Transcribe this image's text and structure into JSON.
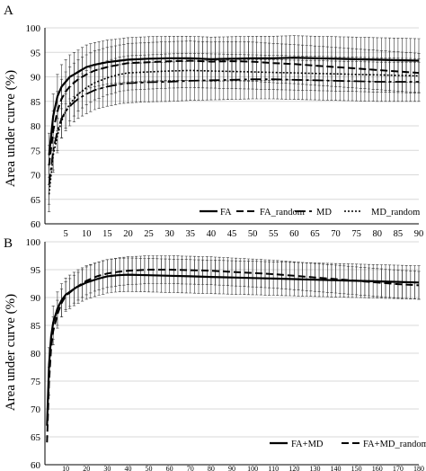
{
  "chart_data": [
    {
      "type": "line",
      "panel_label": "A",
      "ylabel": "Area under curve (%)",
      "ylim": [
        60,
        100
      ],
      "yticks": [
        60,
        65,
        70,
        75,
        80,
        85,
        90,
        95,
        100
      ],
      "xlim": [
        0,
        90
      ],
      "xticks": [
        5,
        10,
        15,
        20,
        25,
        30,
        35,
        40,
        45,
        50,
        55,
        60,
        65,
        70,
        75,
        80,
        85,
        90
      ],
      "grid": true,
      "legend_position": "bottom-right",
      "error_bars": true,
      "x": [
        1,
        2,
        3,
        4,
        5,
        6,
        7,
        8,
        10,
        12,
        15,
        18,
        20,
        25,
        30,
        35,
        40,
        45,
        50,
        55,
        60,
        65,
        70,
        75,
        80,
        85,
        90
      ],
      "series": [
        {
          "name": "FA",
          "values": [
            74,
            82,
            86,
            88,
            89,
            90,
            90.5,
            91,
            92,
            92.5,
            93,
            93.3,
            93.5,
            93.7,
            93.8,
            93.8,
            93.6,
            93.7,
            93.8,
            93.8,
            93.9,
            93.8,
            93.7,
            93.6,
            93.5,
            93.4,
            93.3
          ],
          "err": 4.5
        },
        {
          "name": "FA_random",
          "values": [
            72,
            79,
            83,
            85.5,
            87,
            88,
            88.8,
            89.5,
            90.5,
            91.3,
            92,
            92.5,
            92.8,
            93,
            93.2,
            93.3,
            93.1,
            93.2,
            93.1,
            92.8,
            92.6,
            92.3,
            92,
            91.7,
            91.4,
            91.1,
            90.8
          ],
          "err": 4.0
        },
        {
          "name": "MD",
          "values": [
            68,
            75,
            79,
            81.5,
            83,
            84,
            84.8,
            85.5,
            86.5,
            87.3,
            88,
            88.5,
            88.7,
            88.9,
            89,
            89.2,
            89.3,
            89.4,
            89.5,
            89.5,
            89.4,
            89.3,
            89.2,
            89.1,
            89,
            89,
            89
          ],
          "err": 4.0
        },
        {
          "name": "MD_random",
          "values": [
            66,
            74,
            78,
            81,
            83,
            84.5,
            85.5,
            86.5,
            87.8,
            88.8,
            89.8,
            90.5,
            90.8,
            91,
            91.2,
            91.3,
            91.2,
            91.1,
            91,
            90.9,
            90.8,
            90.7,
            90.6,
            90.5,
            90.4,
            90.3,
            90.2
          ],
          "err": 3.5
        }
      ]
    },
    {
      "type": "line",
      "panel_label": "B",
      "ylabel": "Area under curve (%)",
      "ylim": [
        60,
        100
      ],
      "yticks": [
        60,
        65,
        70,
        75,
        80,
        85,
        90,
        95,
        100
      ],
      "xlim": [
        0,
        180
      ],
      "xticks": [
        10,
        20,
        30,
        40,
        50,
        60,
        70,
        80,
        90,
        100,
        110,
        120,
        130,
        140,
        150,
        160,
        170,
        180
      ],
      "grid": true,
      "legend_position": "bottom-right",
      "error_bars": true,
      "x": [
        1,
        2,
        3,
        4,
        6,
        8,
        10,
        15,
        20,
        25,
        30,
        35,
        40,
        50,
        60,
        70,
        80,
        90,
        100,
        110,
        120,
        130,
        140,
        150,
        160,
        170,
        180
      ],
      "series": [
        {
          "name": "FA+MD",
          "values": [
            67,
            78,
            83,
            85.5,
            88,
            89.5,
            90.5,
            91.8,
            92.7,
            93.3,
            93.8,
            94,
            94.1,
            94,
            93.9,
            93.8,
            93.7,
            93.6,
            93.5,
            93.4,
            93.3,
            93.2,
            93.1,
            93,
            92.9,
            92.8,
            92.7
          ],
          "err": 3.0
        },
        {
          "name": "FA+MD_random",
          "values": [
            64,
            75,
            81,
            84,
            87,
            89,
            90.3,
            91.8,
            93,
            93.8,
            94.3,
            94.6,
            94.8,
            95,
            95,
            94.9,
            94.8,
            94.6,
            94.4,
            94.2,
            93.9,
            93.6,
            93.3,
            93,
            92.7,
            92.4,
            92.2
          ],
          "err": 2.5
        }
      ]
    }
  ]
}
